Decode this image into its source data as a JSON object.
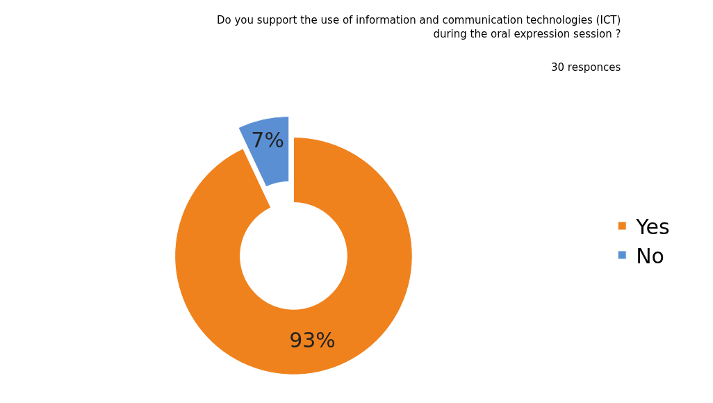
{
  "chart_data": {
    "type": "donut",
    "title": "Do you support the use of information and communication technologies (ICT)\nduring the oral expression session ?",
    "subtitle": "30 responces",
    "categories": [
      "Yes",
      "No"
    ],
    "values": [
      93,
      7
    ],
    "value_labels": [
      "93%",
      "7%"
    ],
    "colors": [
      "#f0821e",
      "#5b8fd3"
    ],
    "legend": "right"
  }
}
